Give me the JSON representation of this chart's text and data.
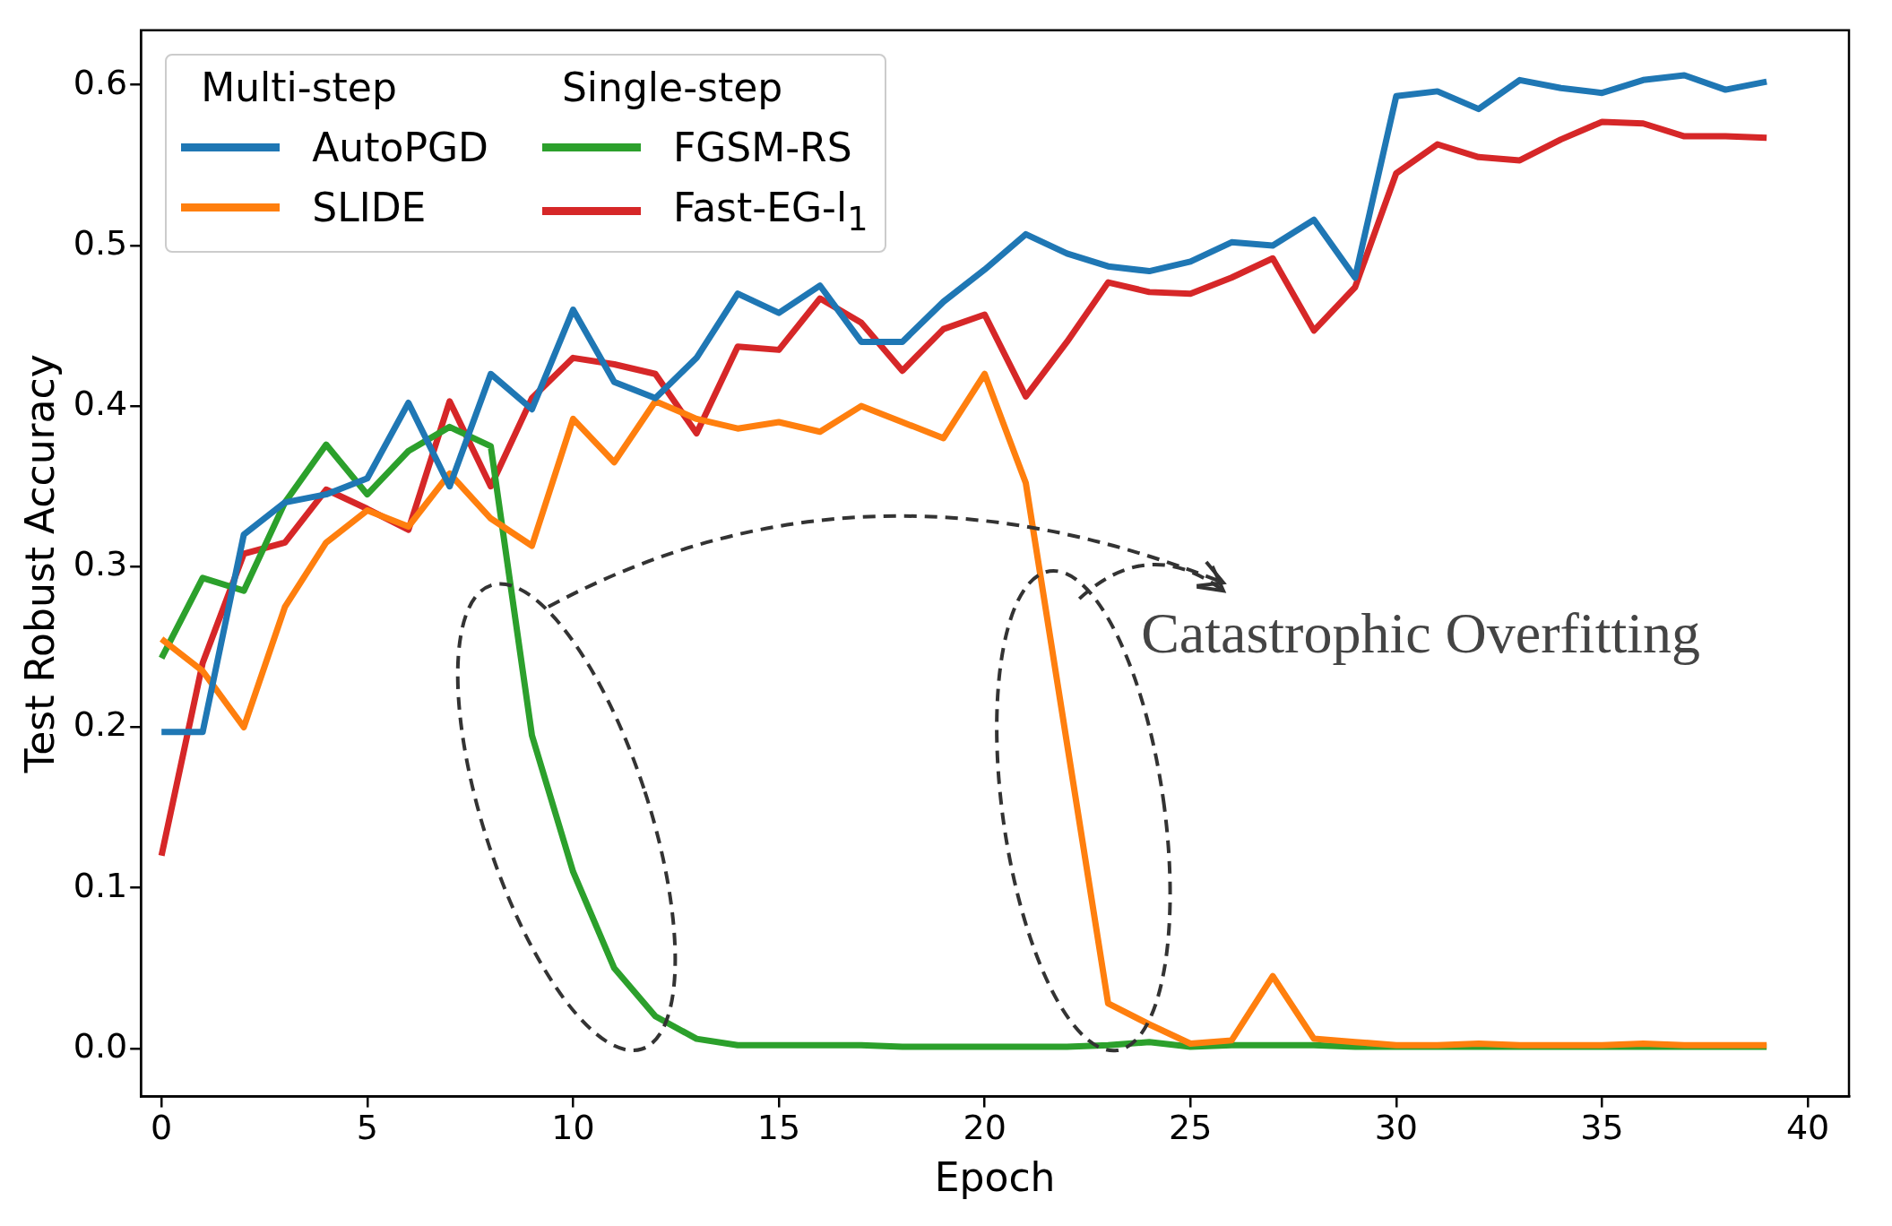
{
  "chart_data": {
    "type": "line",
    "xlabel": "Epoch",
    "ylabel": "Test Robust Accuracy",
    "x": [
      0,
      1,
      2,
      3,
      4,
      5,
      6,
      7,
      8,
      9,
      10,
      11,
      12,
      13,
      14,
      15,
      16,
      17,
      18,
      19,
      20,
      21,
      22,
      23,
      24,
      25,
      26,
      27,
      28,
      29,
      30,
      31,
      32,
      33,
      34,
      35,
      36,
      37,
      38,
      39
    ],
    "series": [
      {
        "name": "AutoPGD",
        "color": "#1f77b4",
        "values": [
          0.197,
          0.197,
          0.32,
          0.34,
          0.345,
          0.355,
          0.402,
          0.35,
          0.42,
          0.398,
          0.46,
          0.415,
          0.405,
          0.43,
          0.47,
          0.458,
          0.475,
          0.44,
          0.44,
          0.465,
          0.485,
          0.507,
          0.495,
          0.487,
          0.484,
          0.49,
          0.502,
          0.5,
          0.516,
          0.48,
          0.593,
          0.596,
          0.585,
          0.603,
          0.598,
          0.595,
          0.603,
          0.606,
          0.597,
          0.602
        ]
      },
      {
        "name": "SLIDE",
        "color": "#ff7f0e",
        "values": [
          0.255,
          0.235,
          0.2,
          0.275,
          0.315,
          0.335,
          0.325,
          0.358,
          0.33,
          0.313,
          0.392,
          0.365,
          0.403,
          0.392,
          0.386,
          0.39,
          0.384,
          0.4,
          0.39,
          0.38,
          0.42,
          0.352,
          0.19,
          0.028,
          0.015,
          0.003,
          0.005,
          0.045,
          0.006,
          0.004,
          0.002,
          0.002,
          0.003,
          0.002,
          0.002,
          0.002,
          0.003,
          0.002,
          0.002,
          0.002
        ]
      },
      {
        "name": "FGSM-RS",
        "color": "#2ca02c",
        "values": [
          0.243,
          0.293,
          0.285,
          0.34,
          0.376,
          0.345,
          0.372,
          0.387,
          0.375,
          0.195,
          0.11,
          0.05,
          0.02,
          0.006,
          0.002,
          0.002,
          0.002,
          0.002,
          0.001,
          0.001,
          0.001,
          0.001,
          0.001,
          0.002,
          0.004,
          0.001,
          0.002,
          0.002,
          0.002,
          0.001,
          0.001,
          0.001,
          0.001,
          0.001,
          0.001,
          0.001,
          0.001,
          0.001,
          0.001,
          0.001
        ]
      },
      {
        "name": "Fast-EG-l$_{1}$",
        "color": "#d62728",
        "values": [
          0.12,
          0.24,
          0.308,
          0.315,
          0.348,
          0.336,
          0.323,
          0.403,
          0.35,
          0.405,
          0.43,
          0.426,
          0.42,
          0.383,
          0.437,
          0.435,
          0.467,
          0.452,
          0.422,
          0.448,
          0.457,
          0.406,
          0.44,
          0.477,
          0.471,
          0.47,
          0.48,
          0.492,
          0.447,
          0.474,
          0.545,
          0.563,
          0.555,
          0.553,
          0.566,
          0.577,
          0.576,
          0.568,
          0.568,
          0.567
        ]
      }
    ],
    "xlim": [
      -0.5,
      41
    ],
    "xticks": [
      0,
      5,
      10,
      15,
      20,
      25,
      30,
      35,
      40
    ],
    "ylim": [
      -0.03,
      0.634
    ],
    "yticks": [
      {
        "value": 0,
        "label": "0.0"
      },
      {
        "value": 0.1,
        "label": "0.1"
      },
      {
        "value": 0.2,
        "label": "0.2"
      },
      {
        "value": 0.3,
        "label": "0.3"
      },
      {
        "value": 0.4,
        "label": "0.4"
      },
      {
        "value": 0.5,
        "label": "0.5"
      },
      {
        "value": 0.6,
        "label": "0.6"
      }
    ],
    "grid": false,
    "legend": "top left",
    "marker": "none",
    "line_style": "solid",
    "annotations": [
      "Multi-step",
      "Single-step",
      "Catastrophic Overfitting"
    ]
  }
}
